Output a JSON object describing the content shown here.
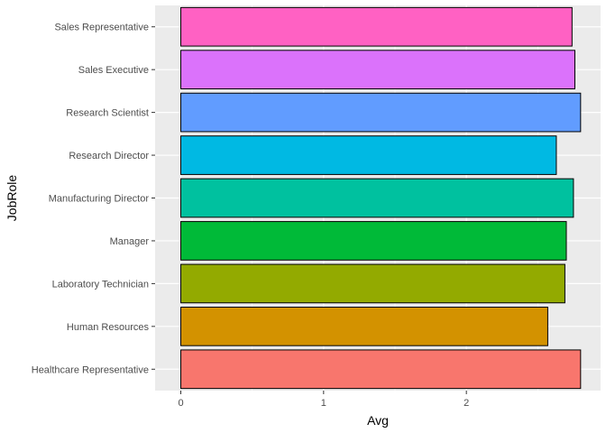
{
  "chart_data": {
    "type": "bar",
    "orientation": "horizontal",
    "xlabel": "Avg",
    "ylabel": "JobRole",
    "xlim": [
      -0.18,
      2.94
    ],
    "x_ticks": [
      0,
      1,
      2
    ],
    "grid": true,
    "legend": "none",
    "categories": [
      "Healthcare Representative",
      "Human Resources",
      "Laboratory Technician",
      "Manager",
      "Manufacturing Director",
      "Research Director",
      "Research Scientist",
      "Sales Executive",
      "Sales Representative"
    ],
    "values": [
      2.8,
      2.57,
      2.69,
      2.7,
      2.75,
      2.63,
      2.8,
      2.76,
      2.74
    ],
    "colors": [
      "#F8766D",
      "#D39200",
      "#93AA00",
      "#00BA38",
      "#00C19F",
      "#00B9E3",
      "#619CFF",
      "#DB72FB",
      "#FF61C3"
    ]
  }
}
